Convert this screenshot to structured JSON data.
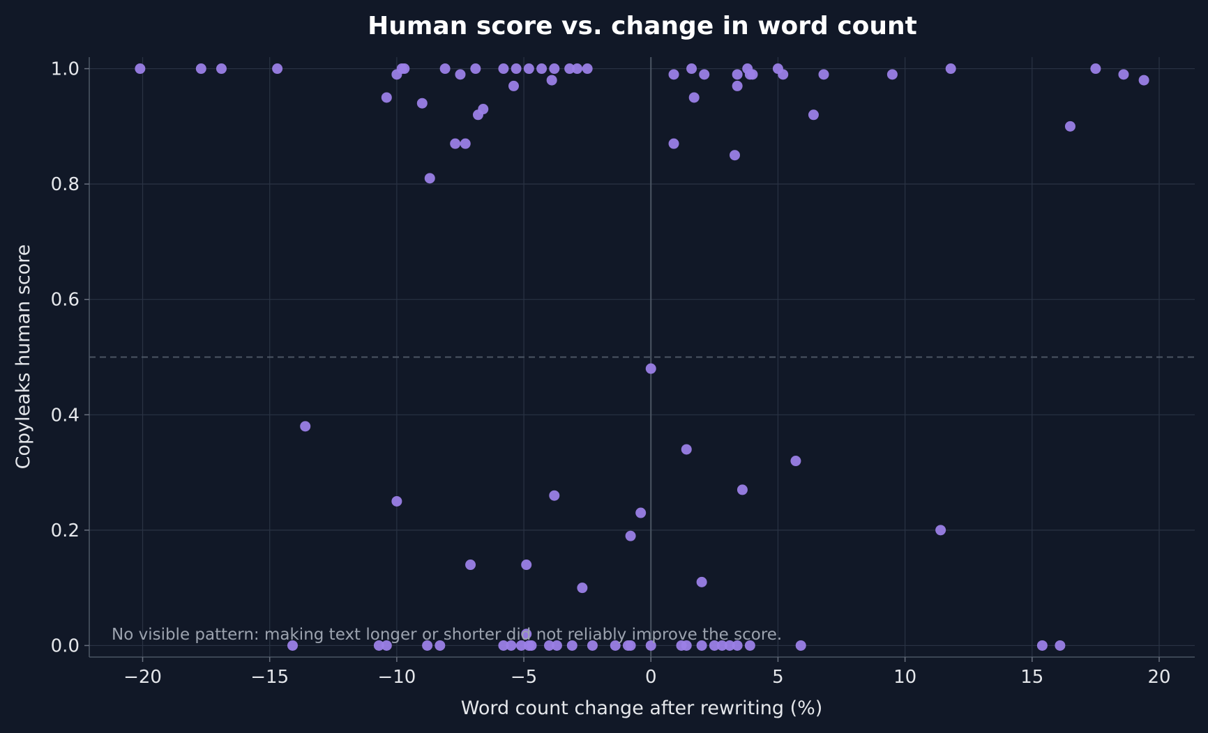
{
  "chart_data": {
    "type": "scatter",
    "title": "Human score vs. change in word count",
    "xlabel": "Word count change after rewriting (%)",
    "ylabel": "Copyleaks human score",
    "xlim": [
      -22.1,
      21.4
    ],
    "ylim": [
      -0.02,
      1.02
    ],
    "xticks": [
      -20,
      -15,
      -10,
      -5,
      0,
      5,
      10,
      15,
      20
    ],
    "xtick_labels": [
      "−20",
      "−15",
      "−10",
      "−5",
      "0",
      "5",
      "10",
      "15",
      "20"
    ],
    "yticks": [
      0.0,
      0.2,
      0.4,
      0.6,
      0.8,
      1.0
    ],
    "ytick_labels": [
      "0.0",
      "0.2",
      "0.4",
      "0.6",
      "0.8",
      "1.0"
    ],
    "grid": true,
    "reference_lines": {
      "horizontal_dashed_y": 0.5,
      "vertical_solid_x": 0
    },
    "annotation": "No visible pattern: making text longer or shorter did not reliably improve the score.",
    "point_color": "#9b7fe6",
    "background": "#111827",
    "points": [
      {
        "x": -20.1,
        "y": 1.0
      },
      {
        "x": -17.7,
        "y": 1.0
      },
      {
        "x": -16.9,
        "y": 1.0
      },
      {
        "x": -14.7,
        "y": 1.0
      },
      {
        "x": -10.4,
        "y": 0.95
      },
      {
        "x": -10.0,
        "y": 0.99
      },
      {
        "x": -9.8,
        "y": 1.0
      },
      {
        "x": -9.7,
        "y": 1.0
      },
      {
        "x": -9.0,
        "y": 0.94
      },
      {
        "x": -8.1,
        "y": 1.0
      },
      {
        "x": -7.5,
        "y": 0.99
      },
      {
        "x": -6.9,
        "y": 1.0
      },
      {
        "x": -5.8,
        "y": 1.0
      },
      {
        "x": -5.3,
        "y": 1.0
      },
      {
        "x": -4.8,
        "y": 1.0
      },
      {
        "x": -4.3,
        "y": 1.0
      },
      {
        "x": -3.8,
        "y": 1.0
      },
      {
        "x": -3.2,
        "y": 1.0
      },
      {
        "x": -2.9,
        "y": 1.0
      },
      {
        "x": -2.5,
        "y": 1.0
      },
      {
        "x": -3.9,
        "y": 0.98
      },
      {
        "x": -5.4,
        "y": 0.97
      },
      {
        "x": -6.6,
        "y": 0.93
      },
      {
        "x": -6.8,
        "y": 0.92
      },
      {
        "x": -7.7,
        "y": 0.87
      },
      {
        "x": -7.3,
        "y": 0.87
      },
      {
        "x": -8.7,
        "y": 0.81
      },
      {
        "x": 0.9,
        "y": 0.99
      },
      {
        "x": 1.6,
        "y": 1.0
      },
      {
        "x": 2.1,
        "y": 0.99
      },
      {
        "x": 1.7,
        "y": 0.95
      },
      {
        "x": 0.9,
        "y": 0.87
      },
      {
        "x": 3.4,
        "y": 0.99
      },
      {
        "x": 3.4,
        "y": 0.97
      },
      {
        "x": 3.8,
        "y": 1.0
      },
      {
        "x": 3.9,
        "y": 0.99
      },
      {
        "x": 4.0,
        "y": 0.99
      },
      {
        "x": 5.0,
        "y": 1.0
      },
      {
        "x": 5.2,
        "y": 0.99
      },
      {
        "x": 6.8,
        "y": 0.99
      },
      {
        "x": 3.3,
        "y": 0.85
      },
      {
        "x": 6.4,
        "y": 0.92
      },
      {
        "x": 9.5,
        "y": 0.99
      },
      {
        "x": 11.8,
        "y": 1.0
      },
      {
        "x": 16.5,
        "y": 0.9
      },
      {
        "x": 17.5,
        "y": 1.0
      },
      {
        "x": 18.6,
        "y": 0.99
      },
      {
        "x": 19.4,
        "y": 0.98
      },
      {
        "x": -13.6,
        "y": 0.38
      },
      {
        "x": -10.0,
        "y": 0.25
      },
      {
        "x": -7.1,
        "y": 0.14
      },
      {
        "x": -4.9,
        "y": 0.14
      },
      {
        "x": -3.8,
        "y": 0.26
      },
      {
        "x": -2.7,
        "y": 0.1
      },
      {
        "x": -0.8,
        "y": 0.19
      },
      {
        "x": -0.4,
        "y": 0.23
      },
      {
        "x": 0.0,
        "y": 0.48
      },
      {
        "x": 1.4,
        "y": 0.34
      },
      {
        "x": 2.0,
        "y": 0.11
      },
      {
        "x": 3.6,
        "y": 0.27
      },
      {
        "x": 5.7,
        "y": 0.32
      },
      {
        "x": 11.4,
        "y": 0.2
      },
      {
        "x": -14.1,
        "y": 0.0
      },
      {
        "x": -10.7,
        "y": 0.0
      },
      {
        "x": -10.4,
        "y": 0.0
      },
      {
        "x": -8.8,
        "y": 0.0
      },
      {
        "x": -8.3,
        "y": 0.0
      },
      {
        "x": -5.8,
        "y": 0.0
      },
      {
        "x": -5.5,
        "y": 0.0
      },
      {
        "x": -5.1,
        "y": 0.0
      },
      {
        "x": -4.9,
        "y": 0.02
      },
      {
        "x": -4.8,
        "y": 0.0
      },
      {
        "x": -4.7,
        "y": 0.0
      },
      {
        "x": -4.0,
        "y": 0.0
      },
      {
        "x": -3.7,
        "y": 0.0
      },
      {
        "x": -3.1,
        "y": 0.0
      },
      {
        "x": -2.3,
        "y": 0.0
      },
      {
        "x": -1.4,
        "y": 0.0
      },
      {
        "x": -0.9,
        "y": 0.0
      },
      {
        "x": -0.8,
        "y": 0.0
      },
      {
        "x": 0.0,
        "y": 0.0
      },
      {
        "x": 1.2,
        "y": 0.0
      },
      {
        "x": 1.4,
        "y": 0.0
      },
      {
        "x": 2.0,
        "y": 0.0
      },
      {
        "x": 2.5,
        "y": 0.0
      },
      {
        "x": 2.8,
        "y": 0.0
      },
      {
        "x": 3.1,
        "y": 0.0
      },
      {
        "x": 3.4,
        "y": 0.0
      },
      {
        "x": 3.9,
        "y": 0.0
      },
      {
        "x": 5.9,
        "y": 0.0
      },
      {
        "x": 15.4,
        "y": 0.0
      },
      {
        "x": 16.1,
        "y": 0.0
      }
    ]
  }
}
